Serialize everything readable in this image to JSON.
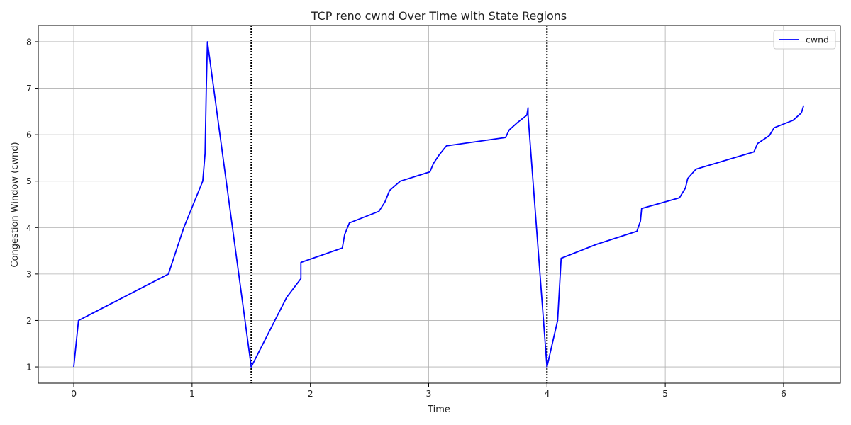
{
  "chart_data": {
    "type": "line",
    "title": "TCP reno cwnd Over Time with State Regions",
    "xlabel": "Time",
    "ylabel": "Congestion Window (cwnd)",
    "xlim": [
      -0.3,
      6.48
    ],
    "ylim": [
      0.65,
      8.35
    ],
    "xticks": [
      0,
      1,
      2,
      3,
      4,
      5,
      6
    ],
    "yticks": [
      1,
      2,
      3,
      4,
      5,
      6,
      7,
      8
    ],
    "grid": true,
    "legend_position": "top-right",
    "series": [
      {
        "name": "cwnd",
        "color": "#0000ff",
        "points": [
          [
            0.0,
            1.0
          ],
          [
            0.04,
            2.0
          ],
          [
            0.8,
            3.0
          ],
          [
            0.93,
            4.0
          ],
          [
            1.09,
            5.0
          ],
          [
            1.11,
            5.6
          ],
          [
            1.12,
            7.0
          ],
          [
            1.13,
            8.0
          ],
          [
            1.5,
            1.0
          ],
          [
            1.7,
            2.0
          ],
          [
            1.8,
            2.5
          ],
          [
            1.92,
            2.9
          ],
          [
            1.92,
            3.25
          ],
          [
            2.27,
            3.56
          ],
          [
            2.29,
            3.85
          ],
          [
            2.33,
            4.1
          ],
          [
            2.58,
            4.35
          ],
          [
            2.63,
            4.55
          ],
          [
            2.67,
            4.8
          ],
          [
            2.76,
            5.0
          ],
          [
            3.01,
            5.2
          ],
          [
            3.04,
            5.38
          ],
          [
            3.09,
            5.57
          ],
          [
            3.15,
            5.76
          ],
          [
            3.65,
            5.94
          ],
          [
            3.68,
            6.1
          ],
          [
            3.75,
            6.26
          ],
          [
            3.83,
            6.42
          ],
          [
            3.84,
            6.58
          ],
          [
            3.84,
            6.42
          ],
          [
            4.0,
            1.0
          ],
          [
            4.09,
            2.0
          ],
          [
            4.12,
            3.34
          ],
          [
            4.42,
            3.64
          ],
          [
            4.76,
            3.92
          ],
          [
            4.79,
            4.14
          ],
          [
            4.8,
            4.41
          ],
          [
            5.12,
            4.64
          ],
          [
            5.17,
            4.85
          ],
          [
            5.19,
            5.06
          ],
          [
            5.26,
            5.26
          ],
          [
            5.75,
            5.63
          ],
          [
            5.78,
            5.81
          ],
          [
            5.88,
            5.98
          ],
          [
            5.92,
            6.15
          ],
          [
            6.08,
            6.31
          ],
          [
            6.15,
            6.47
          ],
          [
            6.17,
            6.63
          ]
        ]
      }
    ],
    "state_markers": [
      1.5,
      4.0
    ]
  }
}
